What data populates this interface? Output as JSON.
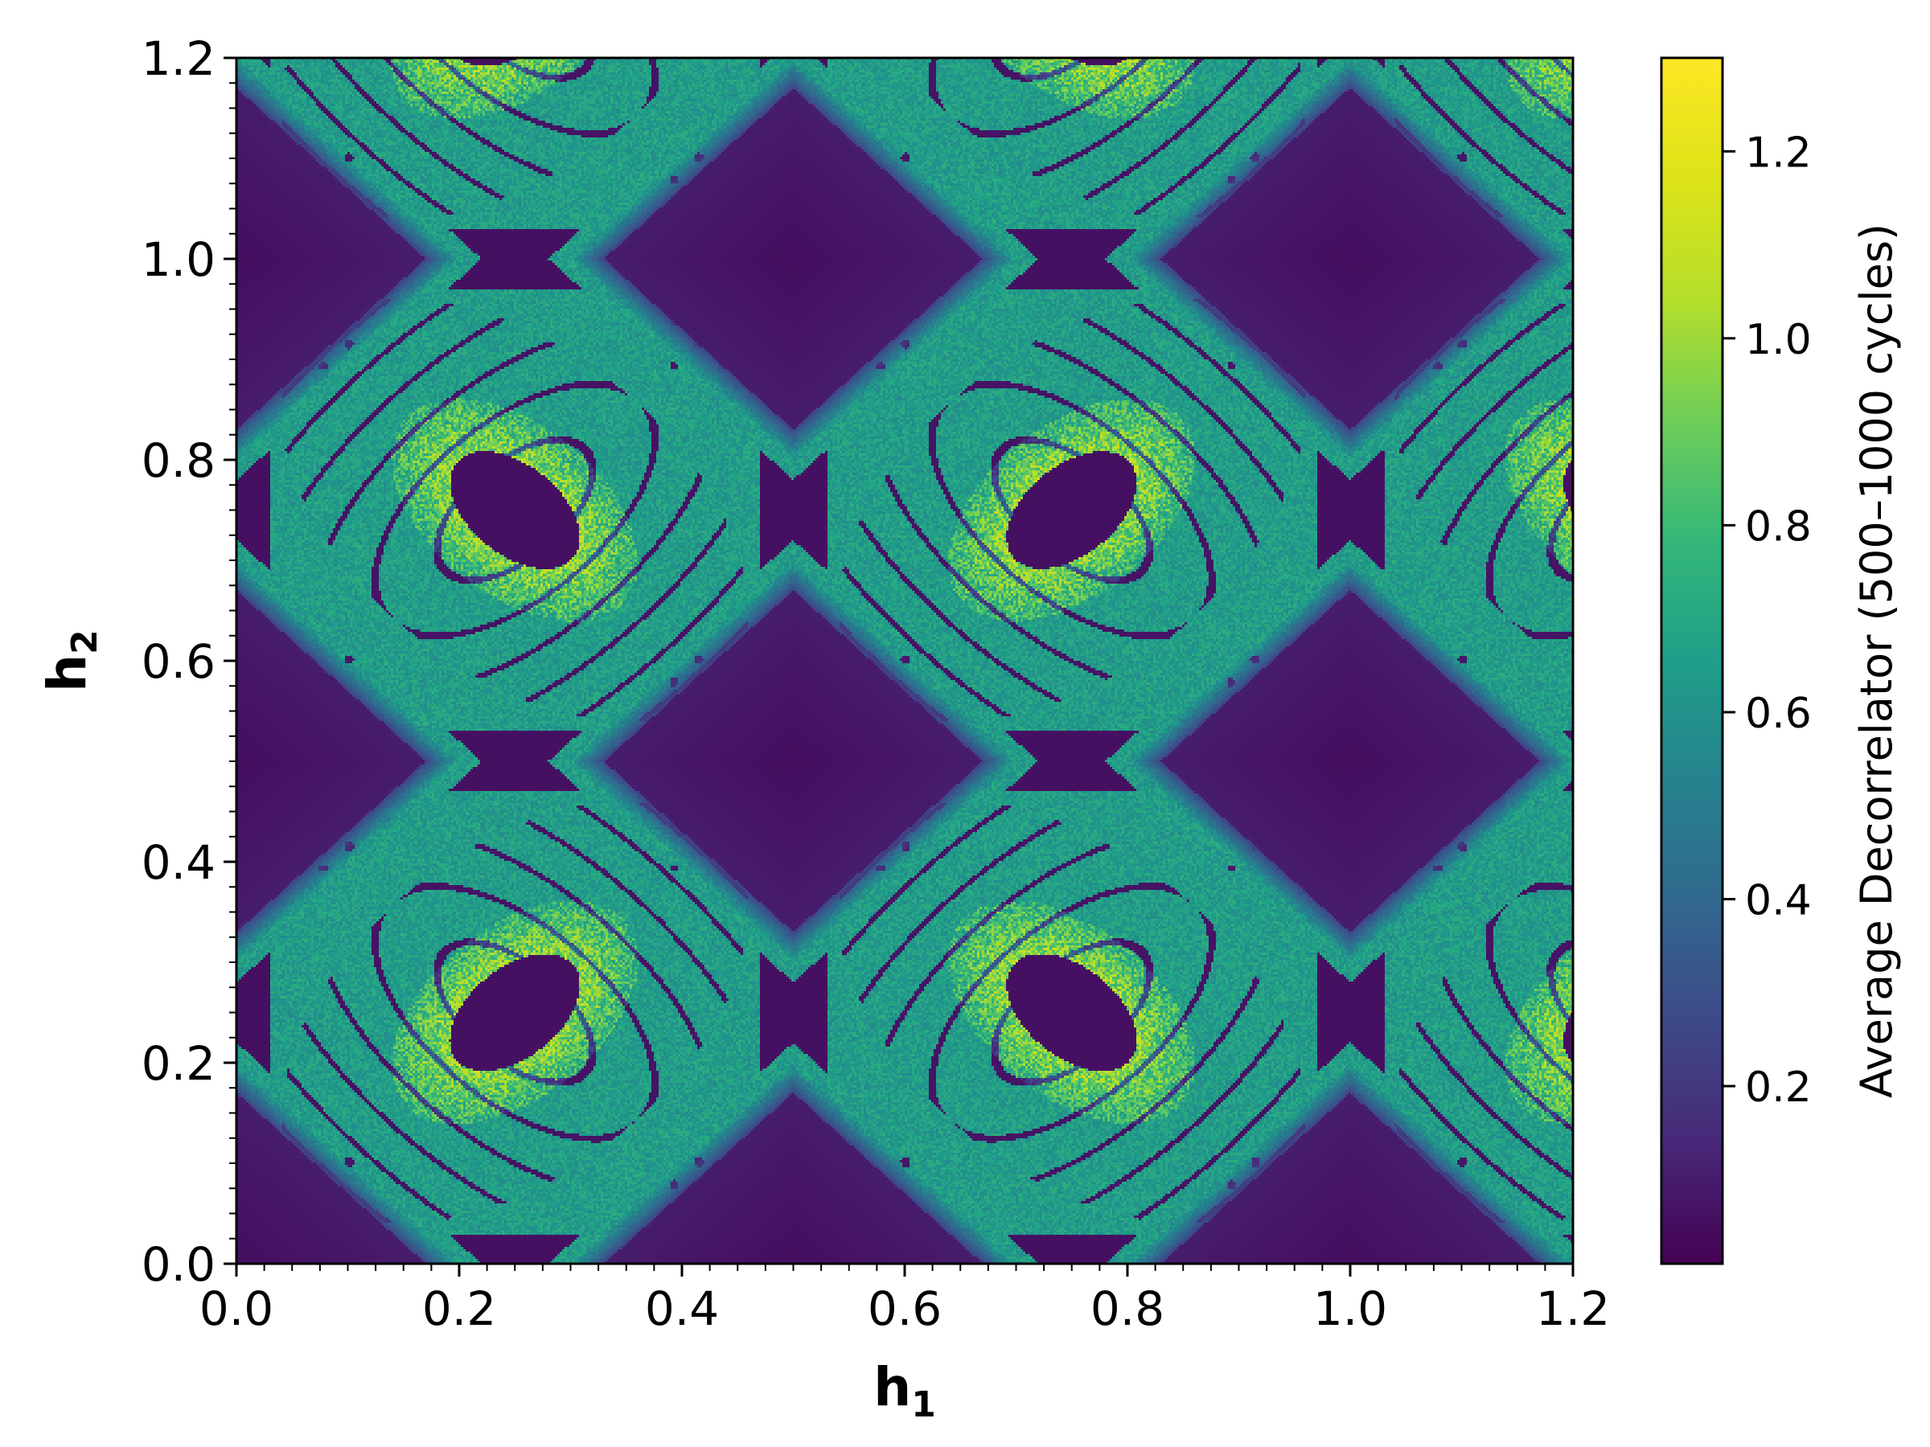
{
  "chart_data": {
    "type": "heatmap",
    "title": "",
    "xlabel": "h",
    "xlabel_sub": "1",
    "ylabel": "h",
    "ylabel_sub": "2",
    "xlim": [
      0.0,
      1.2
    ],
    "ylim": [
      0.0,
      1.2
    ],
    "x_ticks": [
      0.0,
      0.2,
      0.4,
      0.6,
      0.8,
      1.0,
      1.2
    ],
    "x_tick_labels": [
      "0.0",
      "0.2",
      "0.4",
      "0.6",
      "0.8",
      "1.0",
      "1.2"
    ],
    "y_ticks": [
      0.0,
      0.2,
      0.4,
      0.6,
      0.8,
      1.0,
      1.2
    ],
    "y_tick_labels": [
      "0.0",
      "0.2",
      "0.4",
      "0.6",
      "0.8",
      "1.0",
      "1.2"
    ],
    "minor_tick_step": 0.025,
    "grid": false,
    "colormap": "viridis",
    "colorbar": {
      "label": "Average Decorrelator (500–1000 cycles)",
      "range": [
        0.01,
        1.3
      ],
      "ticks": [
        0.2,
        0.4,
        0.6,
        0.8,
        1.0,
        1.2
      ],
      "tick_labels": [
        "0.2",
        "0.4",
        "0.6",
        "0.8",
        "1.0",
        "1.2"
      ]
    },
    "field": {
      "periodicity": 0.5,
      "chaotic_band_level": 0.65,
      "stable_region_level": 0.05,
      "peak_level": 1.15,
      "dark_island_centers": [
        [
          0.25,
          0.25
        ],
        [
          0.75,
          0.25
        ],
        [
          0.25,
          0.75
        ],
        [
          0.75,
          0.75
        ]
      ],
      "dark_diamond_centers": [
        [
          0.0,
          0.0
        ],
        [
          0.5,
          0.5
        ],
        [
          1.0,
          1.0
        ],
        [
          1.0,
          0.0
        ],
        [
          0.0,
          1.0
        ],
        [
          0.5,
          0.0
        ],
        [
          0.0,
          0.5
        ]
      ]
    }
  }
}
